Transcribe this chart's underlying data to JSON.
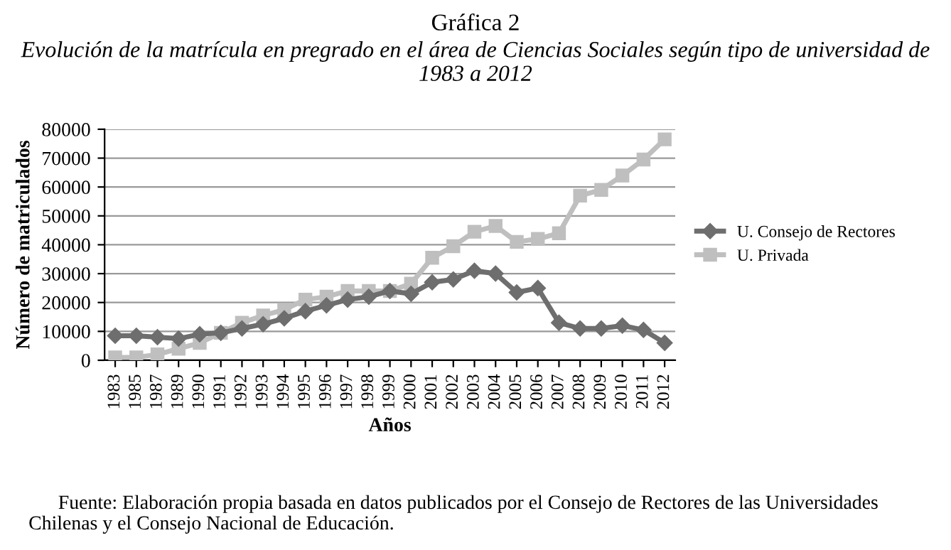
{
  "chart_data": {
    "type": "line",
    "title": "Gráfica 2",
    "subtitle": "Evolución de la matrícula en pregrado en el área de Ciencias Sociales según tipo de universidad de 1983 a 2012",
    "xlabel": "Años",
    "ylabel": "Número de matriculados",
    "categories": [
      "1983",
      "1985",
      "1987",
      "1989",
      "1990",
      "1991",
      "1992",
      "1993",
      "1994",
      "1995",
      "1996",
      "1997",
      "1998",
      "1999",
      "2000",
      "2001",
      "2002",
      "2003",
      "2004",
      "2005",
      "2006",
      "2007",
      "2008",
      "2009",
      "2010",
      "2011",
      "2012"
    ],
    "series": [
      {
        "name": "U. Consejo de Rectores",
        "color": "#6e6e6e",
        "marker": "diamond",
        "values": [
          8500,
          8500,
          8000,
          7500,
          9000,
          9500,
          11000,
          12500,
          14500,
          17000,
          19000,
          21000,
          22000,
          24000,
          23000,
          27000,
          28000,
          31000,
          30000,
          23500,
          25000,
          13000,
          11000,
          11000,
          12000,
          10500,
          6000
        ]
      },
      {
        "name": "U. Privada",
        "color": "#bfbfbf",
        "marker": "square",
        "values": [
          1000,
          1000,
          2000,
          4000,
          6000,
          9500,
          13000,
          15500,
          17500,
          21000,
          22000,
          24000,
          24000,
          24000,
          26500,
          35500,
          39500,
          44500,
          46500,
          41000,
          42000,
          44000,
          57000,
          59000,
          64000,
          69500,
          76500
        ]
      }
    ],
    "ylim": [
      0,
      80000
    ],
    "yticks": [
      0,
      10000,
      20000,
      30000,
      40000,
      50000,
      60000,
      70000,
      80000
    ],
    "grid": "y",
    "legend": "right",
    "line_style": "solid",
    "annotations": [
      "Fuente: Elaboración propia basada en datos publicados por el Consejo de Rectores de las Universidades Chilenas y el Consejo Nacional de Educación."
    ]
  }
}
